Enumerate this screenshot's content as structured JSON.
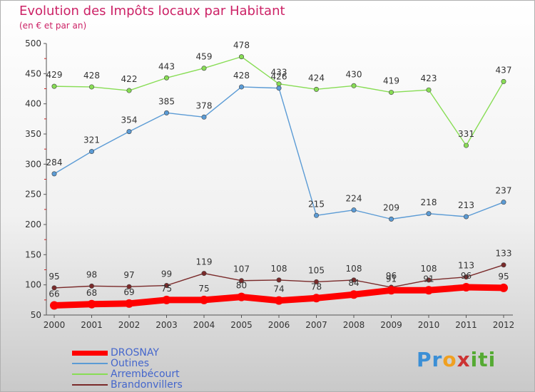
{
  "title": "Evolution des Impôts locaux par Habitant",
  "subtitle": "(en € et par an)",
  "logo": "Proxiti",
  "chart_data": {
    "type": "line",
    "title": "Evolution des Impôts locaux par Habitant",
    "subtitle": "(en € et par an)",
    "x": [
      "2000",
      "2001",
      "2002",
      "2003",
      "2004",
      "2005",
      "2006",
      "2007",
      "2008",
      "2009",
      "2010",
      "2011",
      "2012"
    ],
    "ylim": [
      50,
      500
    ],
    "yticks": [
      50,
      100,
      150,
      200,
      250,
      300,
      350,
      400,
      450,
      500
    ],
    "grid": false,
    "legend_position": "bottom-left",
    "series": [
      {
        "name": "DROSNAY",
        "color": "#ff0000",
        "values": [
          66,
          68,
          69,
          75,
          75,
          80,
          74,
          78,
          84,
          91,
          91,
          96,
          95
        ]
      },
      {
        "name": "Outines",
        "color": "#5b9bd5",
        "values": [
          284,
          321,
          354,
          385,
          378,
          428,
          426,
          215,
          224,
          209,
          218,
          213,
          237
        ]
      },
      {
        "name": "Arrembécourt",
        "color": "#88dd55",
        "values": [
          429,
          428,
          422,
          443,
          459,
          478,
          433,
          424,
          430,
          419,
          423,
          331,
          437
        ]
      },
      {
        "name": "Brandonvillers",
        "color": "#7a2a2a",
        "values": [
          95,
          98,
          97,
          99,
          119,
          107,
          108,
          105,
          108,
          96,
          108,
          113,
          133
        ]
      }
    ]
  }
}
